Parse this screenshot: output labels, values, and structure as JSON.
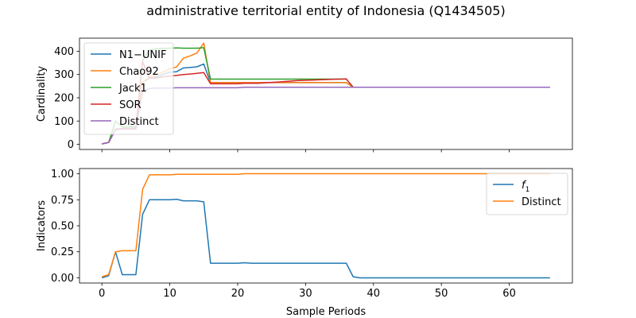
{
  "title": "administrative territorial entity of Indonesia (Q1434505)",
  "chart_data": [
    {
      "type": "line",
      "ylabel": "Cardinality",
      "xlabel": "",
      "xlim": [
        -3.3,
        69.3
      ],
      "ylim": [
        -22,
        456
      ],
      "xticks": [
        0,
        10,
        20,
        30,
        40,
        50,
        60
      ],
      "yticks": [
        0,
        100,
        200,
        300,
        400
      ],
      "show_xticklabels": false,
      "legend": "upper-left",
      "x": [
        0,
        1,
        2,
        3,
        4,
        5,
        6,
        7,
        8,
        9,
        10,
        11,
        12,
        13,
        14,
        15,
        16,
        17,
        18,
        19,
        20,
        21,
        22,
        23,
        24,
        25,
        26,
        27,
        28,
        29,
        30,
        31,
        32,
        33,
        34,
        35,
        36,
        37,
        38,
        39,
        40,
        41,
        42,
        43,
        44,
        45,
        46,
        47,
        48,
        49,
        50,
        51,
        52,
        53,
        54,
        55,
        56,
        57,
        58,
        59,
        60,
        61,
        62,
        63,
        64,
        65,
        66
      ],
      "series": [
        {
          "name": "N1−UNIF",
          "color": "#1f77b4",
          "values": [
            2,
            8,
            65,
            68,
            68,
            68,
            265,
            285,
            290,
            300,
            310,
            312,
            328,
            330,
            333,
            345,
            265,
            265,
            265,
            265,
            265,
            265,
            265,
            265,
            265,
            265,
            265,
            265,
            265,
            265,
            265,
            265,
            265,
            265,
            265,
            265,
            265,
            245,
            245,
            245,
            245,
            245,
            245,
            245,
            245,
            245,
            245,
            245,
            245,
            245,
            245,
            245,
            245,
            245,
            245,
            245,
            245,
            245,
            245,
            245,
            245,
            245,
            245,
            245,
            245,
            245,
            245
          ]
        },
        {
          "name": "Chao92",
          "color": "#ff7f0e",
          "values": [
            2,
            8,
            65,
            68,
            68,
            68,
            265,
            290,
            300,
            310,
            325,
            332,
            370,
            380,
            392,
            435,
            265,
            265,
            265,
            265,
            265,
            265,
            265,
            265,
            265,
            265,
            265,
            265,
            265,
            265,
            265,
            265,
            265,
            265,
            265,
            265,
            265,
            245,
            245,
            245,
            245,
            245,
            245,
            245,
            245,
            245,
            245,
            245,
            245,
            245,
            245,
            245,
            245,
            245,
            245,
            245,
            245,
            245,
            245,
            245,
            245,
            245,
            245,
            245,
            245,
            245,
            245
          ]
        },
        {
          "name": "Jack1",
          "color": "#2ca02c",
          "values": [
            2,
            8,
            100,
            75,
            75,
            75,
            360,
            405,
            410,
            412,
            413,
            414,
            413,
            413,
            413,
            415,
            280,
            280,
            280,
            280,
            280,
            280,
            280,
            280,
            280,
            280,
            280,
            280,
            280,
            280,
            280,
            280,
            280,
            280,
            280,
            280,
            280,
            245,
            245,
            245,
            245,
            245,
            245,
            245,
            245,
            245,
            245,
            245,
            245,
            245,
            245,
            245,
            245,
            245,
            245,
            245,
            245,
            245,
            245,
            245,
            245,
            245,
            245,
            245,
            245,
            245,
            245
          ]
        },
        {
          "name": "SOR",
          "color": "#d62728",
          "values": [
            2,
            8,
            65,
            68,
            68,
            68,
            355,
            285,
            285,
            290,
            293,
            296,
            300,
            302,
            305,
            308,
            260,
            260,
            260,
            260,
            260,
            262,
            262,
            262,
            264,
            266,
            268,
            270,
            272,
            274,
            275,
            276,
            277,
            278,
            279,
            280,
            281,
            245,
            245,
            245,
            245,
            245,
            245,
            245,
            245,
            245,
            245,
            245,
            245,
            245,
            245,
            245,
            245,
            245,
            245,
            245,
            245,
            245,
            245,
            245,
            245,
            245,
            245,
            245,
            245,
            245,
            245
          ]
        },
        {
          "name": "Distinct",
          "color": "#9467bd",
          "values": [
            2,
            8,
            62,
            65,
            65,
            65,
            228,
            240,
            242,
            242,
            242,
            243,
            243,
            243,
            243,
            243,
            243,
            243,
            243,
            243,
            243,
            245,
            245,
            245,
            245,
            245,
            245,
            245,
            245,
            245,
            245,
            245,
            245,
            245,
            245,
            245,
            245,
            245,
            245,
            245,
            245,
            245,
            245,
            245,
            245,
            245,
            245,
            245,
            245,
            245,
            245,
            245,
            245,
            245,
            245,
            245,
            245,
            245,
            245,
            245,
            245,
            245,
            245,
            245,
            245,
            245,
            245
          ]
        }
      ]
    },
    {
      "type": "line",
      "ylabel": "Indicators",
      "xlabel": "Sample Periods",
      "xlim": [
        -3.3,
        69.3
      ],
      "ylim": [
        -0.05,
        1.05
      ],
      "xticks": [
        0,
        10,
        20,
        30,
        40,
        50,
        60
      ],
      "yticks": [
        0.0,
        0.25,
        0.5,
        0.75,
        1.0
      ],
      "ytick_labels": [
        "0.00",
        "0.25",
        "0.50",
        "0.75",
        "1.00"
      ],
      "xtick_labels": [
        "0",
        "10",
        "20",
        "30",
        "40",
        "50",
        "60"
      ],
      "show_xticklabels": true,
      "legend": "upper-right",
      "x": [
        0,
        1,
        2,
        3,
        4,
        5,
        6,
        7,
        8,
        9,
        10,
        11,
        12,
        13,
        14,
        15,
        16,
        17,
        18,
        19,
        20,
        21,
        22,
        23,
        24,
        25,
        26,
        27,
        28,
        29,
        30,
        31,
        32,
        33,
        34,
        35,
        36,
        37,
        38,
        39,
        40,
        41,
        42,
        43,
        44,
        45,
        46,
        47,
        48,
        49,
        50,
        51,
        52,
        53,
        54,
        55,
        56,
        57,
        58,
        59,
        60,
        61,
        62,
        63,
        64,
        65,
        66
      ],
      "series": [
        {
          "name": "f1",
          "legend_main": "f",
          "legend_sub": "1",
          "color": "#1f77b4",
          "values": [
            0.0,
            0.02,
            0.25,
            0.03,
            0.03,
            0.03,
            0.61,
            0.75,
            0.75,
            0.75,
            0.75,
            0.755,
            0.74,
            0.74,
            0.74,
            0.73,
            0.14,
            0.14,
            0.14,
            0.14,
            0.14,
            0.145,
            0.14,
            0.14,
            0.14,
            0.14,
            0.14,
            0.14,
            0.14,
            0.14,
            0.14,
            0.14,
            0.14,
            0.14,
            0.14,
            0.14,
            0.14,
            0.01,
            0.0,
            0.0,
            0.0,
            0.0,
            0.0,
            0.0,
            0.0,
            0.0,
            0.0,
            0.0,
            0.0,
            0.0,
            0.0,
            0.0,
            0.0,
            0.0,
            0.0,
            0.0,
            0.0,
            0.0,
            0.0,
            0.0,
            0.0,
            0.0,
            0.0,
            0.0,
            0.0,
            0.0,
            0.0
          ]
        },
        {
          "name": "Distinct",
          "color": "#ff7f0e",
          "values": [
            0.01,
            0.03,
            0.25,
            0.26,
            0.26,
            0.26,
            0.85,
            0.99,
            0.99,
            0.99,
            0.99,
            0.995,
            0.995,
            0.995,
            0.995,
            0.995,
            0.995,
            0.995,
            0.995,
            0.995,
            0.995,
            1.0,
            1.0,
            1.0,
            1.0,
            1.0,
            1.0,
            1.0,
            1.0,
            1.0,
            1.0,
            1.0,
            1.0,
            1.0,
            1.0,
            1.0,
            1.0,
            1.0,
            1.0,
            1.0,
            1.0,
            1.0,
            1.0,
            1.0,
            1.0,
            1.0,
            1.0,
            1.0,
            1.0,
            1.0,
            1.0,
            1.0,
            1.0,
            1.0,
            1.0,
            1.0,
            1.0,
            1.0,
            1.0,
            1.0,
            1.0,
            1.0,
            1.0,
            1.0,
            1.0,
            1.0,
            1.0
          ]
        }
      ]
    }
  ]
}
